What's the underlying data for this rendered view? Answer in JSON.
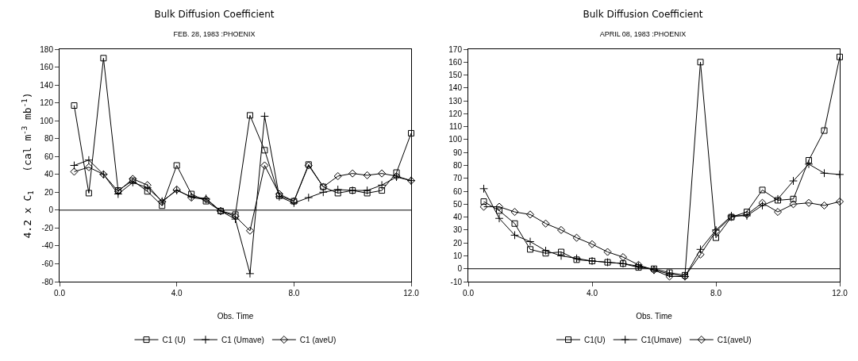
{
  "chart_data": [
    {
      "type": "line",
      "title": "Bulk Diffusion Coefficient",
      "subtitle": "FEB. 28, 1983 :PHOENIX",
      "xlabel": "Obs. Time",
      "ylabel": "4.2 x C$_{1}$   (cal m$^{-3}$ mb$^{-1}$)",
      "x": [
        0.5,
        1,
        1.5,
        2,
        2.5,
        3,
        3.5,
        4,
        4.5,
        5,
        5.5,
        6,
        6.5,
        7,
        7.5,
        8,
        8.5,
        9,
        9.5,
        10,
        10.5,
        11,
        11.5,
        12
      ],
      "series": [
        {
          "name": "C1 (U)",
          "color": "#000000",
          "marker": "square",
          "values": [
            117,
            19,
            170,
            22,
            33,
            21,
            5,
            50,
            18,
            10,
            -1,
            -5,
            106,
            67,
            16,
            10,
            51,
            26,
            19,
            22,
            19,
            22,
            42,
            86
          ]
        },
        {
          "name": "C1 (Umave)",
          "color": "#000000",
          "marker": "cross",
          "values": [
            50,
            56,
            40,
            18,
            31,
            25,
            10,
            22,
            15,
            13,
            -1,
            -10,
            -71,
            105,
            15,
            8,
            14,
            20,
            23,
            22,
            22,
            28,
            37,
            33
          ]
        },
        {
          "name": "C1 (aveU)",
          "color": "#000000",
          "marker": "diamond",
          "values": [
            43,
            48,
            40,
            21,
            35,
            28,
            9,
            23,
            14,
            12,
            -1,
            -7,
            -23,
            50,
            18,
            10,
            50,
            26,
            38,
            41,
            39,
            41,
            38,
            33
          ]
        }
      ],
      "xlim": [
        0,
        12
      ],
      "xticks": [
        {
          "value": 0,
          "label": "0.0"
        },
        {
          "value": 4,
          "label": "4.0"
        },
        {
          "value": 8,
          "label": "8.0"
        },
        {
          "value": 12,
          "label": "12.0"
        }
      ],
      "ylim": [
        -80,
        180
      ],
      "yticks": [
        -80,
        -60,
        -40,
        -20,
        0,
        20,
        40,
        60,
        80,
        100,
        120,
        140,
        160,
        180
      ],
      "ref_lines": [
        {
          "axis": "y",
          "value": 0,
          "color": "#000000"
        }
      ],
      "grid": false,
      "legend": "bottom",
      "line_style": "solid"
    },
    {
      "type": "line",
      "title": "Bulk Diffusion Coefficient",
      "subtitle": "APRIL 08, 1983 :PHOENIX",
      "xlabel": "Obs. Time",
      "x": [
        0.5,
        1,
        1.5,
        2,
        2.5,
        3,
        3.5,
        4,
        4.5,
        5,
        5.5,
        6,
        6.5,
        7,
        7.5,
        8,
        8.5,
        9,
        9.5,
        10,
        10.5,
        11,
        11.5,
        12
      ],
      "series": [
        {
          "name": "C1(U)",
          "color": "#000000",
          "marker": "square",
          "values": [
            52,
            45,
            35,
            15,
            12,
            13,
            7,
            6,
            5,
            4,
            1,
            0,
            -3,
            -5,
            160,
            24,
            40,
            44,
            61,
            53,
            54,
            84,
            107,
            164
          ]
        },
        {
          "name": "C1(Umave)",
          "color": "#000000",
          "marker": "cross",
          "values": [
            62,
            39,
            26,
            21,
            14,
            10,
            8,
            6,
            5,
            4,
            2,
            -1,
            -4,
            -6,
            15,
            30,
            41,
            41,
            49,
            54,
            68,
            81,
            74,
            73
          ]
        },
        {
          "name": "C1(aveU)",
          "color": "#000000",
          "marker": "diamond",
          "values": [
            48,
            48,
            44,
            42,
            35,
            30,
            24,
            19,
            13,
            9,
            3,
            -1,
            -6,
            -6,
            11,
            29,
            40,
            42,
            51,
            44,
            50,
            51,
            49,
            52
          ]
        }
      ],
      "xlim": [
        0,
        12
      ],
      "xticks": [
        {
          "value": 0,
          "label": "0.0"
        },
        {
          "value": 4,
          "label": "4.0"
        },
        {
          "value": 8,
          "label": "8.0"
        },
        {
          "value": 12,
          "label": "12.0"
        }
      ],
      "ylim": [
        -10,
        170
      ],
      "yticks": [
        -10,
        0,
        10,
        20,
        30,
        40,
        50,
        60,
        70,
        80,
        90,
        100,
        110,
        120,
        130,
        140,
        150,
        160,
        170
      ],
      "ref_lines": [
        {
          "axis": "y",
          "value": 0,
          "color": "#000000"
        }
      ],
      "grid": false,
      "legend": "bottom",
      "line_style": "solid"
    }
  ]
}
